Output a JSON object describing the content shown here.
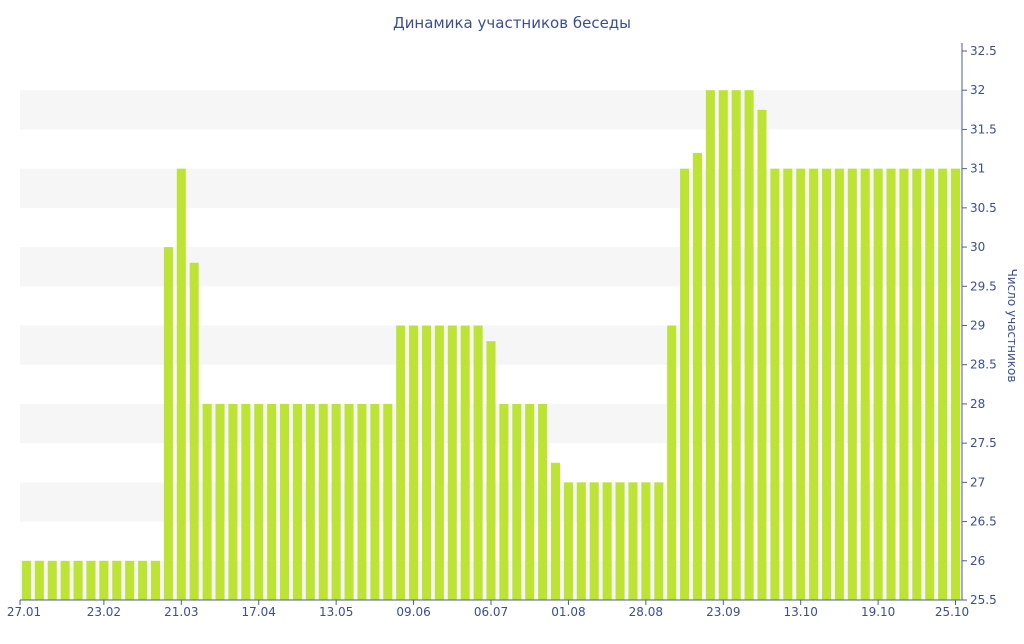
{
  "colors": {
    "bar": "#bde434",
    "band": "#f6f6f6",
    "axis": "#4a5e9a",
    "text": "#3a4f8f"
  },
  "chart_data": {
    "type": "bar",
    "title": "Динамика участников беседы",
    "xlabel": "",
    "ylabel": "Число участников",
    "ylim": [
      25.5,
      32.5
    ],
    "yticks": [
      "25.5",
      "26",
      "26.5",
      "27",
      "27.5",
      "28",
      "28.5",
      "29",
      "29.5",
      "30",
      "30.5",
      "31",
      "31.5",
      "32",
      "32.5"
    ],
    "y_axis_position": "right",
    "grid": "alternating horizontal bands",
    "x_tick_labels": [
      {
        "label": "27.01",
        "index": 0
      },
      {
        "label": "23.02",
        "index": 6
      },
      {
        "label": "21.03",
        "index": 12
      },
      {
        "label": "17.04",
        "index": 18
      },
      {
        "label": "13.05",
        "index": 24
      },
      {
        "label": "09.06",
        "index": 30
      },
      {
        "label": "06.07",
        "index": 36
      },
      {
        "label": "01.08",
        "index": 42
      },
      {
        "label": "28.08",
        "index": 48
      },
      {
        "label": "23.09",
        "index": 54
      },
      {
        "label": "13.10",
        "index": 60
      },
      {
        "label": "19.10",
        "index": 66
      },
      {
        "label": "25.10",
        "index": 72
      }
    ],
    "values": [
      26,
      26,
      26,
      26,
      26,
      26,
      26,
      26,
      26,
      26,
      26,
      30,
      31,
      29.8,
      28,
      28,
      28,
      28,
      28,
      28,
      28,
      28,
      28,
      28,
      28,
      28,
      28,
      28,
      28,
      29,
      29,
      29,
      29,
      29,
      29,
      29,
      28.8,
      28,
      28,
      28,
      28,
      27.25,
      27,
      27,
      27,
      27,
      27,
      27,
      27,
      27,
      29,
      31,
      31.2,
      32,
      32,
      32,
      32,
      31.75,
      31,
      31,
      31,
      31,
      31,
      31,
      31,
      31,
      31,
      31,
      31,
      31,
      31,
      31,
      31
    ]
  }
}
